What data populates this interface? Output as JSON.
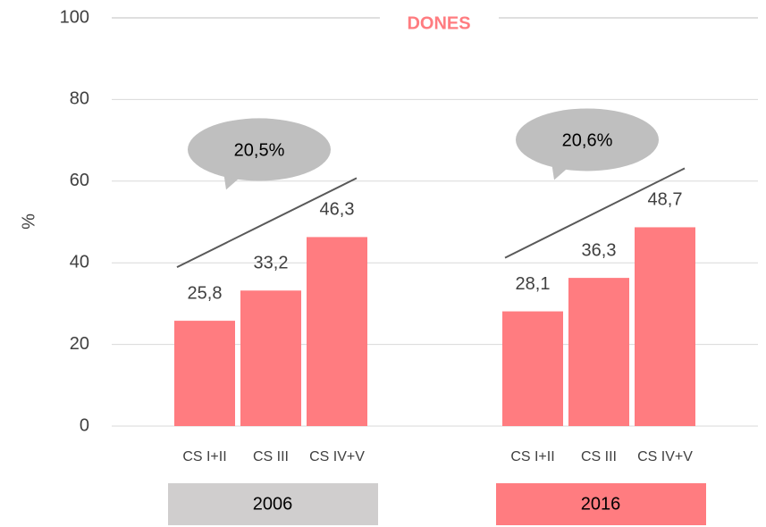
{
  "chart_data": {
    "type": "bar",
    "title": "DONES",
    "title_color": "#ff7c80",
    "y_label": "%",
    "ylim": [
      0,
      100
    ],
    "yticks": [
      0,
      20,
      40,
      60,
      80,
      100
    ],
    "grid": true,
    "groups": [
      {
        "name": "2006",
        "color": "#ff7c80",
        "box_color": "#d0cece",
        "annotation": "20,5%",
        "categories": [
          "CS I+II",
          "CS III",
          "CS IV+V"
        ],
        "values": [
          25.8,
          33.2,
          46.3
        ],
        "value_labels": [
          "25,8",
          "33,2",
          "46,3"
        ]
      },
      {
        "name": "2016",
        "color": "#ff7c80",
        "box_color": "#ff7c80",
        "annotation": "20,6%",
        "categories": [
          "CS I+II",
          "CS III",
          "CS IV+V"
        ],
        "values": [
          28.1,
          36.3,
          48.7
        ],
        "value_labels": [
          "28,1",
          "36,3",
          "48,7"
        ]
      }
    ]
  }
}
